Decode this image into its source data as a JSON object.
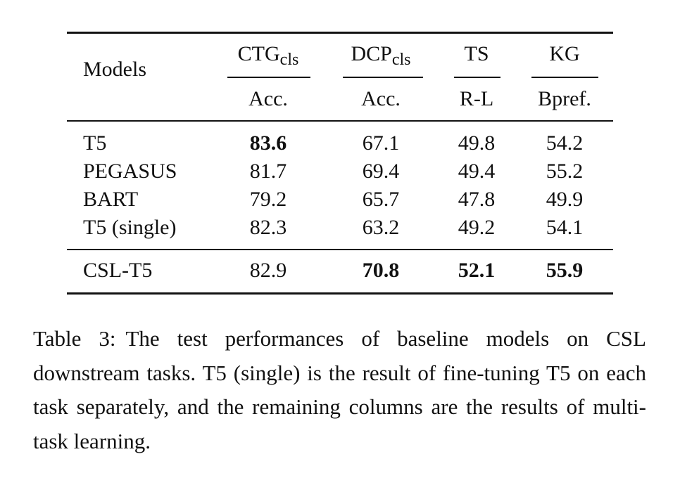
{
  "table": {
    "header": {
      "models": "Models",
      "groups": [
        {
          "name": "CTG",
          "sub": "cls",
          "metric": "Acc."
        },
        {
          "name": "DCP",
          "sub": "cls",
          "metric": "Acc."
        },
        {
          "name": "TS",
          "metric": "R-L"
        },
        {
          "name": "KG",
          "metric": "Bpref."
        }
      ]
    },
    "row_groups": [
      [
        [
          "T5",
          "83.6",
          "67.1",
          "49.8",
          "54.2"
        ],
        [
          "PEGASUS",
          "81.7",
          "69.4",
          "49.4",
          "55.2"
        ],
        [
          "BART",
          "79.2",
          "65.7",
          "47.8",
          "49.9"
        ],
        [
          "T5 (single)",
          "82.3",
          "63.2",
          "49.2",
          "54.1"
        ]
      ],
      [
        [
          "CSL-T5",
          "82.9",
          "70.8",
          "52.1",
          "55.9"
        ]
      ]
    ],
    "bold": [
      [
        0,
        0,
        1
      ],
      [
        1,
        0,
        2
      ],
      [
        1,
        0,
        3
      ],
      [
        1,
        0,
        4
      ]
    ]
  },
  "caption": {
    "label": "Table 3:",
    "text": "The test performances of baseline models on CSL downstream tasks. T5 (single) is the result of fine-tuning T5 on each task separately, and the remaining columns are the results of multi-task learning."
  }
}
